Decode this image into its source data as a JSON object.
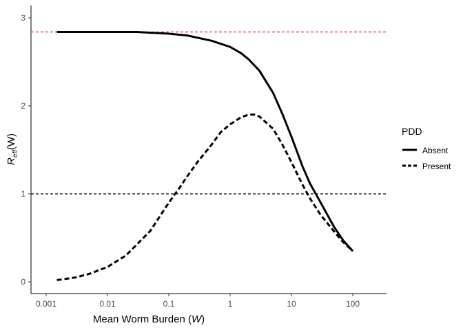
{
  "chart_data": {
    "type": "line",
    "x_scale": "log10",
    "xlim": [
      0.001,
      100
    ],
    "ylim": [
      0,
      3
    ],
    "x_ticks": [
      0.001,
      0.01,
      0.1,
      1,
      10,
      100
    ],
    "x_tick_labels": [
      "0.001",
      "0.01",
      "0.1",
      "1",
      "10",
      "100"
    ],
    "y_ticks": [
      0,
      1,
      2,
      3
    ],
    "y_tick_labels": [
      "0",
      "1",
      "2",
      "3"
    ],
    "xlabel": "Mean Worm Burden (W)",
    "xlabel_text": "Mean Worm Burden (",
    "xlabel_var": "W",
    "xlabel_close": ")",
    "ylabel": "Reff(W)",
    "ylabel_main": "R",
    "ylabel_sub": "eff",
    "ylabel_rest": "(W)",
    "grid": false,
    "legend": {
      "title": "PDD",
      "placement": "right",
      "entries": [
        "Absent",
        "Present"
      ]
    },
    "reference_lines": [
      {
        "y": 2.84,
        "color": "#d62728",
        "style": "dashed"
      },
      {
        "y": 1,
        "color": "#000000",
        "style": "dashed"
      }
    ],
    "series": [
      {
        "name": "Absent",
        "style": "solid",
        "x": [
          0.0015,
          0.003,
          0.01,
          0.03,
          0.1,
          0.2,
          0.5,
          1,
          1.5,
          2,
          3,
          5,
          7,
          10,
          15,
          20,
          30,
          50,
          70,
          100
        ],
        "y": [
          2.84,
          2.84,
          2.84,
          2.84,
          2.82,
          2.8,
          2.74,
          2.67,
          2.6,
          2.53,
          2.4,
          2.15,
          1.92,
          1.65,
          1.32,
          1.12,
          0.9,
          0.62,
          0.47,
          0.35
        ]
      },
      {
        "name": "Present",
        "style": "dashed",
        "x": [
          0.0015,
          0.003,
          0.005,
          0.01,
          0.02,
          0.05,
          0.1,
          0.15,
          0.2,
          0.3,
          0.5,
          0.7,
          1,
          1.5,
          2,
          2.5,
          3,
          5,
          7,
          10,
          15,
          20,
          30,
          50,
          70,
          100
        ],
        "y": [
          0.02,
          0.05,
          0.09,
          0.17,
          0.3,
          0.58,
          0.9,
          1.07,
          1.2,
          1.37,
          1.56,
          1.7,
          1.79,
          1.87,
          1.9,
          1.9,
          1.88,
          1.74,
          1.57,
          1.36,
          1.11,
          0.95,
          0.76,
          0.57,
          0.45,
          0.35
        ]
      }
    ]
  }
}
